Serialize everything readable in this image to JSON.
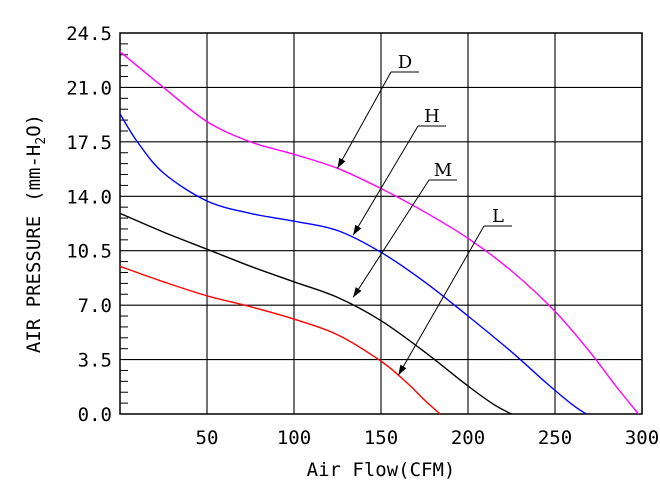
{
  "chart_data": {
    "type": "line",
    "title": "",
    "xlabel": "Air Flow(CFM)",
    "ylabel": "AIR PRESSURE (mm-H2O)",
    "ylabel_main": "AIR PRESSURE",
    "ylabel_unit_open": "(mm-H",
    "ylabel_unit_sub": "2",
    "ylabel_unit_close": "O)",
    "xlim": [
      0,
      300
    ],
    "ylim": [
      0,
      24.5
    ],
    "x_ticks": [
      "50",
      "100",
      "150",
      "200",
      "250",
      "300"
    ],
    "y_ticks": [
      "0.0",
      "3.5",
      "7.0",
      "10.5",
      "14.0",
      "17.5",
      "21.0",
      "24.5"
    ],
    "grid": true,
    "series": [
      {
        "name": "D",
        "color": "#ff00ff",
        "x": [
          0,
          25,
          50,
          75,
          100,
          125,
          150,
          175,
          200,
          225,
          250,
          270,
          285,
          298
        ],
        "y": [
          23.3,
          21.0,
          18.8,
          17.5,
          16.7,
          15.8,
          14.5,
          13.0,
          11.3,
          9.2,
          6.6,
          4.0,
          1.8,
          0.0
        ]
      },
      {
        "name": "H",
        "color": "#0000ff",
        "x": [
          0,
          10,
          25,
          50,
          75,
          100,
          125,
          150,
          175,
          200,
          225,
          245,
          260,
          268
        ],
        "y": [
          19.3,
          17.5,
          15.5,
          13.7,
          12.9,
          12.4,
          11.8,
          10.4,
          8.5,
          6.3,
          4.0,
          2.0,
          0.6,
          0.0
        ]
      },
      {
        "name": "M",
        "color": "#000000",
        "x": [
          0,
          25,
          50,
          75,
          100,
          125,
          150,
          175,
          200,
          215,
          225
        ],
        "y": [
          12.9,
          11.7,
          10.6,
          9.5,
          8.5,
          7.5,
          6.0,
          4.0,
          1.8,
          0.6,
          0.0
        ]
      },
      {
        "name": "L",
        "color": "#ff0000",
        "x": [
          0,
          25,
          50,
          75,
          100,
          125,
          150,
          165,
          175,
          184
        ],
        "y": [
          9.5,
          8.5,
          7.6,
          6.9,
          6.1,
          5.1,
          3.4,
          2.0,
          0.9,
          0.0
        ]
      }
    ],
    "annotations": [
      {
        "text": "D",
        "arrow_to": [
          125,
          15.8
        ]
      },
      {
        "text": "H",
        "arrow_to": [
          134,
          11.5
        ]
      },
      {
        "text": "M",
        "arrow_to": [
          134,
          7.5
        ]
      },
      {
        "text": "L",
        "arrow_to": [
          160,
          2.5
        ]
      }
    ]
  }
}
